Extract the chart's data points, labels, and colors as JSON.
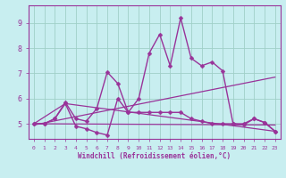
{
  "bg_color": "#c8eef0",
  "grid_color": "#a0d0c8",
  "line_color": "#993399",
  "xlabel": "Windchill (Refroidissement éolien,°C)",
  "x_ticks": [
    0,
    1,
    2,
    3,
    4,
    5,
    6,
    7,
    8,
    9,
    10,
    11,
    12,
    13,
    14,
    15,
    16,
    17,
    18,
    19,
    20,
    21,
    22,
    23
  ],
  "y_ticks": [
    5,
    6,
    7,
    8,
    9
  ],
  "ylim": [
    4.4,
    9.7
  ],
  "xlim": [
    -0.5,
    23.5
  ],
  "series": [
    {
      "x": [
        0,
        1,
        2,
        3,
        4,
        5,
        6,
        7,
        8,
        9,
        10,
        11,
        12,
        13,
        14,
        15,
        16,
        17,
        18,
        19,
        20,
        21,
        22,
        23
      ],
      "y": [
        5.0,
        5.0,
        5.2,
        5.8,
        4.9,
        4.8,
        4.65,
        4.55,
        6.0,
        5.45,
        5.45,
        5.45,
        5.45,
        5.45,
        5.45,
        5.2,
        5.1,
        5.0,
        5.0,
        5.0,
        4.95,
        5.2,
        5.05,
        4.7
      ],
      "marker": "D",
      "markersize": 2.5,
      "linewidth": 1.0,
      "has_marker": true
    },
    {
      "x": [
        0,
        1,
        2,
        3,
        4,
        5,
        6,
        7,
        8,
        9,
        10,
        11,
        12,
        13,
        14,
        15,
        16,
        17,
        18,
        19,
        20,
        21,
        22,
        23
      ],
      "y": [
        5.0,
        5.0,
        5.2,
        5.85,
        5.2,
        5.1,
        5.6,
        7.05,
        6.6,
        5.45,
        6.0,
        7.8,
        8.55,
        7.3,
        9.2,
        7.6,
        7.3,
        7.45,
        7.1,
        5.0,
        5.0,
        5.2,
        5.05,
        4.7
      ],
      "marker": "D",
      "markersize": 2.5,
      "linewidth": 1.0,
      "has_marker": true
    },
    {
      "x": [
        0,
        23
      ],
      "y": [
        4.95,
        6.85
      ],
      "marker": null,
      "markersize": 0,
      "linewidth": 0.9,
      "has_marker": false
    },
    {
      "x": [
        0,
        23
      ],
      "y": [
        5.0,
        4.95
      ],
      "marker": null,
      "markersize": 0,
      "linewidth": 0.9,
      "has_marker": false
    },
    {
      "x": [
        0,
        3,
        23
      ],
      "y": [
        5.0,
        5.8,
        4.7
      ],
      "marker": null,
      "markersize": 0,
      "linewidth": 0.9,
      "has_marker": false
    }
  ]
}
